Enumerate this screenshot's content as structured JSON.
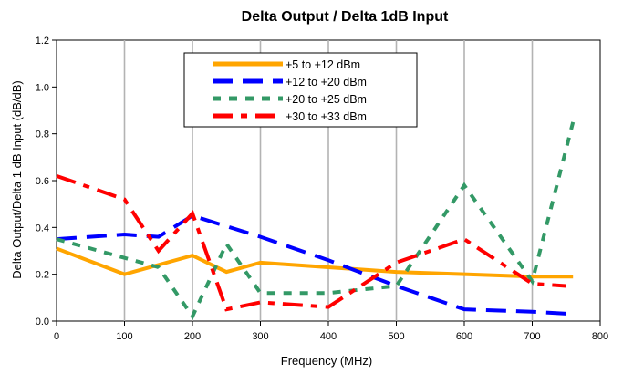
{
  "chart_data": {
    "type": "line",
    "title": "Delta Output / Delta 1dB Input",
    "xlabel": "Frequency (MHz)",
    "ylabel": "Delta Output/Delta 1 dB Input (dB/dB)",
    "xlim": [
      0,
      800
    ],
    "ylim": [
      0,
      1.2
    ],
    "xticks": [
      0,
      100,
      200,
      300,
      400,
      500,
      600,
      700,
      800
    ],
    "yticks": [
      0.0,
      0.2,
      0.4,
      0.6,
      0.8,
      1.0,
      1.2
    ],
    "xtick_labels": [
      "0",
      "100",
      "200",
      "300",
      "400",
      "500",
      "600",
      "700",
      "800"
    ],
    "ytick_labels": [
      "0.0",
      "0.2",
      "0.4",
      "0.6",
      "0.8",
      "1.0",
      "1.2"
    ],
    "grid": "vertical",
    "legend_position": "top-center",
    "series": [
      {
        "name": "+5 to +12 dBm",
        "color": "#ffa500",
        "style": "solid",
        "x": [
          0,
          100,
          200,
          250,
          300,
          400,
          500,
          600,
          700,
          760
        ],
        "y": [
          0.31,
          0.2,
          0.28,
          0.21,
          0.25,
          0.23,
          0.21,
          0.2,
          0.19,
          0.19
        ]
      },
      {
        "name": "+12 to +20 dBm",
        "color": "#0000ff",
        "style": "long-dash",
        "x": [
          0,
          100,
          150,
          200,
          300,
          400,
          500,
          600,
          700,
          760
        ],
        "y": [
          0.35,
          0.37,
          0.36,
          0.45,
          0.36,
          0.26,
          0.15,
          0.05,
          0.04,
          0.03
        ]
      },
      {
        "name": "+20 to +25 dBm",
        "color": "#339966",
        "style": "short-dash",
        "x": [
          0,
          100,
          150,
          200,
          250,
          300,
          400,
          500,
          600,
          700,
          760
        ],
        "y": [
          0.35,
          0.27,
          0.23,
          0.02,
          0.33,
          0.12,
          0.12,
          0.15,
          0.58,
          0.17,
          0.85
        ]
      },
      {
        "name": "+30 to +33 dBm",
        "color": "#ff0000",
        "style": "dash-dot",
        "x": [
          0,
          100,
          150,
          200,
          250,
          300,
          400,
          500,
          600,
          700,
          750
        ],
        "y": [
          0.62,
          0.52,
          0.3,
          0.46,
          0.05,
          0.08,
          0.06,
          0.25,
          0.35,
          0.16,
          0.15
        ]
      }
    ]
  }
}
